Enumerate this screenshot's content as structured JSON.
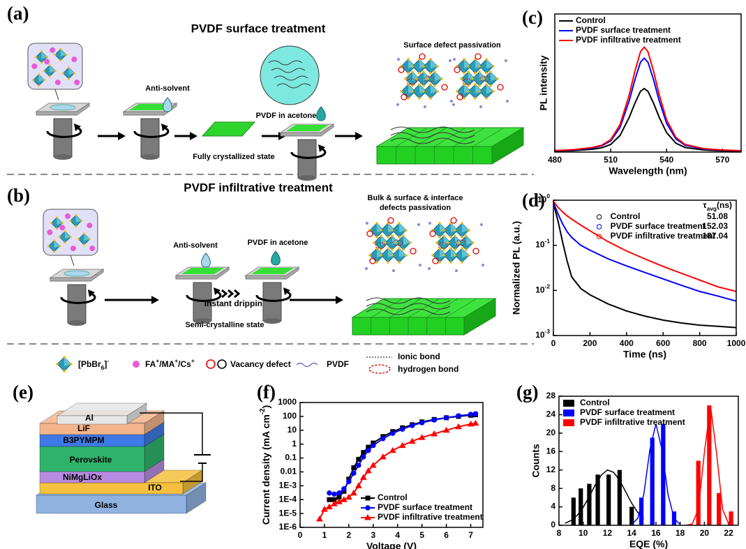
{
  "figure": {
    "panel_labels": [
      "(a)",
      "(b)",
      "(c)",
      "(d)",
      "(e)",
      "(f)",
      "(g)"
    ],
    "a": {
      "title": "PVDF surface treatment",
      "anti_solvent": "Anti-solvent",
      "pvdf": "PVDF in acetone",
      "state": "Fully crystallized state",
      "result": "Surface defect passivation"
    },
    "b": {
      "title": "PVDF infiltrative treatment",
      "anti_solvent": "Anti-solvent",
      "pvdf": "PVDF in acetone",
      "dripping": "Instant dripping",
      "state": "Semi-crystalline state",
      "result": [
        "Bulk & surface & interface",
        "defects passivation"
      ]
    },
    "legend": {
      "pbbr": [
        "[PbBr",
        "6",
        "]",
        "-"
      ],
      "cation": [
        "FA",
        "+",
        "/MA",
        "+",
        "/Cs",
        "+"
      ],
      "vacancy": "Vacancy defect",
      "pvdf": "PVDF",
      "ionic": "Ionic bond",
      "hydrogen": "hydrogen bond"
    },
    "e": {
      "layers": [
        "Al",
        "LiF",
        "B3PYMPM",
        "Perovskite",
        "NiMgLiOx",
        "ITO",
        "Glass"
      ]
    }
  },
  "chart_data": [
    {
      "type": "line",
      "x_label": "Wavelength (nm)",
      "y_label": "PL intensity",
      "x": [
        480,
        490,
        500,
        505,
        510,
        515,
        520,
        523,
        526,
        528,
        530,
        533,
        536,
        540,
        545,
        550,
        560,
        570,
        580
      ],
      "xlim": [
        480,
        580
      ],
      "xticks": [
        480,
        510,
        540,
        570
      ],
      "ylim": [
        0,
        1
      ],
      "legend": "upper left",
      "series": [
        {
          "name": "Control",
          "color": "#000000",
          "values": [
            0.007,
            0.011,
            0.02,
            0.03,
            0.055,
            0.12,
            0.253,
            0.354,
            0.44,
            0.46,
            0.44,
            0.354,
            0.253,
            0.141,
            0.064,
            0.033,
            0.015,
            0.009,
            0.006
          ]
        },
        {
          "name": "PVDF surface treatment",
          "color": "#0000ff",
          "values": [
            0.01,
            0.016,
            0.029,
            0.044,
            0.081,
            0.177,
            0.374,
            0.524,
            0.651,
            0.68,
            0.651,
            0.524,
            0.374,
            0.208,
            0.095,
            0.049,
            0.022,
            0.014,
            0.009
          ]
        },
        {
          "name": "PVDF infiltrative treatment",
          "color": "#ff0000",
          "values": [
            0.011,
            0.018,
            0.033,
            0.049,
            0.09,
            0.198,
            0.418,
            0.585,
            0.727,
            0.76,
            0.727,
            0.585,
            0.418,
            0.233,
            0.106,
            0.055,
            0.025,
            0.015,
            0.01
          ]
        }
      ]
    },
    {
      "type": "line",
      "log_y": true,
      "x_label": "Time (ns)",
      "y_label": "Normalized PL (a.u.)",
      "tau_header": {
        "symbol": "τ",
        "sub": "avg",
        "unit": "(ns)"
      },
      "x": [
        0,
        25,
        50,
        75,
        100,
        150,
        200,
        300,
        400,
        500,
        600,
        700,
        800,
        900,
        1000
      ],
      "xlim": [
        0,
        1000
      ],
      "xticks": [
        0,
        200,
        400,
        600,
        800,
        1000
      ],
      "ylim": [
        0.001,
        1
      ],
      "yticks": [
        {
          "value": 0.001,
          "label": "10",
          "exp": "-3"
        },
        {
          "value": 0.01,
          "label": "10",
          "exp": "-2"
        },
        {
          "value": 0.1,
          "label": "10",
          "exp": "-1"
        },
        {
          "value": 1,
          "label": "10",
          "exp": "0"
        }
      ],
      "legend": "upper right",
      "marker": "circle-open",
      "series": [
        {
          "name": "Control",
          "color": "#000000",
          "tau": 51.08,
          "values": [
            0.85,
            0.35,
            0.12,
            0.045,
            0.02,
            0.011,
            0.008,
            0.005,
            0.0035,
            0.0027,
            0.0022,
            0.0019,
            0.0017,
            0.0016,
            0.0015
          ]
        },
        {
          "name": "PVDF surface treatment",
          "color": "#0000ff",
          "tau": 152.03,
          "values": [
            0.9,
            0.5,
            0.3,
            0.2,
            0.15,
            0.1,
            0.078,
            0.05,
            0.035,
            0.025,
            0.018,
            0.013,
            0.0095,
            0.0075,
            0.0058
          ]
        },
        {
          "name": "PVDF infiltrative treatment",
          "color": "#ff0000",
          "tau": 187.04,
          "values": [
            0.95,
            0.7,
            0.55,
            0.45,
            0.38,
            0.28,
            0.21,
            0.12,
            0.075,
            0.05,
            0.034,
            0.024,
            0.017,
            0.012,
            0.0095
          ]
        }
      ]
    },
    {
      "type": "line",
      "log_y": true,
      "x_label": "Voltage (V)",
      "y_label": [
        "Current density (mA cm",
        "-2",
        ")"
      ],
      "xlim": [
        0,
        7.5
      ],
      "xticks": [
        0,
        1,
        2,
        3,
        4,
        5,
        6,
        7
      ],
      "ylim": [
        1e-06,
        1000
      ],
      "yticks": [
        {
          "value": 1e-06,
          "label": "1E-6"
        },
        {
          "value": 1e-05,
          "label": "1E-5"
        },
        {
          "value": 0.0001,
          "label": "1E-4"
        },
        {
          "value": 0.001,
          "label": "1E-3"
        },
        0.01,
        0.1,
        1,
        10,
        100,
        1000
      ],
      "legend": "lower right",
      "series": [
        {
          "name": "Control",
          "color": "#000000",
          "marker": "square",
          "x": [
            1.2,
            1.4,
            1.6,
            1.8,
            2.0,
            2.2,
            2.4,
            2.6,
            2.8,
            3.0,
            3.4,
            3.8,
            4.2,
            4.6,
            5.0,
            5.5,
            6.0,
            6.5,
            7.0,
            7.2
          ],
          "values": [
            0.0001,
            0.0001,
            0.00015,
            0.0004,
            0.003,
            0.02,
            0.08,
            0.25,
            0.6,
            1.2,
            3.5,
            8,
            15,
            25,
            40,
            60,
            80,
            100,
            120,
            130
          ]
        },
        {
          "name": "PVDF surface treatment",
          "color": "#0000ff",
          "marker": "circle",
          "x": [
            1.2,
            1.4,
            1.6,
            1.8,
            2.0,
            2.2,
            2.4,
            2.6,
            2.8,
            3.0,
            3.4,
            3.8,
            4.2,
            4.6,
            5.0,
            5.5,
            6.0,
            6.5,
            7.0,
            7.2
          ],
          "values": [
            0.0003,
            0.00025,
            0.0003,
            0.0006,
            0.002,
            0.008,
            0.03,
            0.12,
            0.35,
            0.8,
            2.5,
            6,
            12,
            22,
            35,
            55,
            80,
            110,
            140,
            155
          ]
        },
        {
          "name": "PVDF infiltrative treatment",
          "color": "#ff0000",
          "marker": "triangle",
          "x": [
            0.8,
            1.0,
            1.2,
            1.4,
            1.6,
            1.8,
            2.0,
            2.2,
            2.4,
            2.6,
            2.8,
            3.0,
            3.4,
            3.8,
            4.2,
            4.6,
            5.0,
            5.5,
            6.0,
            6.5,
            7.0,
            7.2
          ],
          "values": [
            4e-06,
            2e-05,
            3e-05,
            5e-05,
            7e-05,
            0.0001,
            0.00015,
            0.0003,
            0.001,
            0.004,
            0.012,
            0.03,
            0.12,
            0.35,
            0.8,
            1.6,
            3,
            5.5,
            10,
            18,
            28,
            32
          ]
        }
      ]
    },
    {
      "type": "bar",
      "x_label": "EQE (%)",
      "y_label": "Counts",
      "xlim": [
        8,
        22.8
      ],
      "xticks": [
        8,
        10,
        12,
        14,
        16,
        18,
        20,
        22
      ],
      "ylim": [
        0,
        28
      ],
      "yticks": [
        0,
        4,
        8,
        12,
        16,
        20,
        24,
        28
      ],
      "legend": "upper left",
      "series": [
        {
          "name": "Control",
          "color": "#000000",
          "x": [
            9.2,
            9.8,
            10.5,
            11.2,
            12.1,
            13.0,
            14.0
          ],
          "values": [
            6,
            8,
            9,
            11,
            11,
            12,
            4
          ],
          "fit": {
            "x": [
              8.5,
              9,
              9.5,
              10,
              10.5,
              11,
              11.5,
              12,
              12.5,
              13,
              13.5,
              14,
              14.5,
              15
            ],
            "values": [
              0.44,
              1.03,
              2.15,
              3.9,
              6.25,
              8.8,
              10.9,
              12.0,
              11.5,
              9.8,
              7.3,
              4.8,
              2.8,
              1.4
            ]
          }
        },
        {
          "name": "PVDF surface treatment",
          "color": "#0000ff",
          "x": [
            14.8,
            15.7,
            16.6,
            17.5
          ],
          "values": [
            6,
            19,
            22,
            3
          ],
          "fit": {
            "x": [
              14,
              14.5,
              15,
              15.5,
              16,
              16.5,
              17,
              17.5,
              18
            ],
            "values": [
              0.19,
              1.5,
              6.7,
              16.4,
              22,
              16.4,
              6.7,
              1.5,
              0.19
            ]
          }
        },
        {
          "name": "PVDF infiltrative treatment",
          "color": "#ff0000",
          "x": [
            19.5,
            20.4,
            21.2,
            22.2
          ],
          "values": [
            14,
            26,
            7,
            3
          ],
          "fit": {
            "x": [
              18.5,
              19,
              19.5,
              20,
              20.5,
              21,
              21.5,
              22,
              22.5
            ],
            "values": [
              0.009,
              0.29,
              3.5,
              15.8,
              26,
              15.8,
              3.5,
              0.29,
              0.009
            ]
          }
        }
      ]
    }
  ]
}
